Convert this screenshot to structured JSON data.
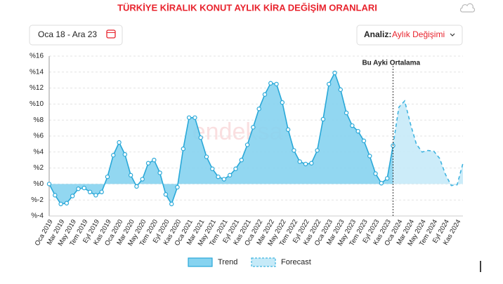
{
  "header": {
    "title": "TÜRKİYE KİRALIK KONUT AYLIK KİRA DEĞİŞİM ORANLARI",
    "date_range": "Oca 18 - Ara 23",
    "analysis_label": "Analiz:",
    "analysis_value": "Aylık Değişimi",
    "watermark": "endeksa"
  },
  "chart_data": {
    "type": "area",
    "annotation": "Bu Ayki Ortalama",
    "categories": [
      "Oca 2019",
      null,
      "Mar 2019",
      null,
      "May 2019",
      null,
      "Tem 2019",
      null,
      "Eyl 2019",
      null,
      "Kas 2019",
      null,
      "Oca 2020",
      null,
      "Mar 2020",
      null,
      "May 2020",
      null,
      "Tem 2020",
      null,
      "Eyl 2020",
      null,
      "Kas 2020",
      null,
      "Oca 2021",
      null,
      "Mar 2021",
      null,
      "May 2021",
      null,
      "Tem 2021",
      null,
      "Eyl 2021",
      null,
      "Kas 2021",
      null,
      "Oca 2022",
      null,
      "Mar 2022",
      null,
      "May 2022",
      null,
      "Tem 2022",
      null,
      "Eyl 2022",
      null,
      "Kas 2022",
      null,
      "Oca 2023",
      null,
      "Mar 2023",
      null,
      "May 2023",
      null,
      "Tem 2023",
      null,
      "Eyl 2023",
      null,
      "Kas 2023",
      null,
      "Oca 2024",
      null,
      "Mar 2024",
      null,
      "May 2024",
      null,
      "Tem 2024",
      null,
      "Eyl 2024",
      null,
      "Kas 2024",
      null
    ],
    "series": [
      {
        "name": "Trend",
        "color": "#29a8d8",
        "fill": "#86d3f0",
        "dashed": false,
        "markers": true,
        "values": [
          0,
          -1.4,
          -2.5,
          -2.4,
          -1.5,
          -0.6,
          -0.5,
          -1.0,
          -1.4,
          -1.0,
          0.9,
          3.6,
          5.2,
          3.7,
          1.1,
          -0.3,
          0.6,
          2.6,
          3.0,
          1.4,
          -1.3,
          -2.5,
          -0.4,
          4.4,
          8.3,
          8.3,
          5.8,
          3.4,
          1.9,
          0.9,
          0.6,
          1.1,
          1.9,
          3.0,
          4.9,
          7.1,
          9.4,
          11.2,
          12.6,
          12.5,
          10.2,
          6.8,
          4.2,
          2.8,
          2.5,
          2.6,
          4.2,
          8.1,
          12.5,
          13.9,
          11.8,
          8.9,
          7.3,
          6.6,
          5.4,
          3.5,
          1.3,
          0.1,
          0.7,
          4.8,
          null,
          null,
          null,
          null,
          null,
          null,
          null,
          null,
          null,
          null,
          null,
          null
        ]
      },
      {
        "name": "Forecast",
        "color": "#3fb3df",
        "fill": "#c6eaf8",
        "dashed": true,
        "markers": false,
        "values": [
          null,
          null,
          null,
          null,
          null,
          null,
          null,
          null,
          null,
          null,
          null,
          null,
          null,
          null,
          null,
          null,
          null,
          null,
          null,
          null,
          null,
          null,
          null,
          null,
          null,
          null,
          null,
          null,
          null,
          null,
          null,
          null,
          null,
          null,
          null,
          null,
          null,
          null,
          null,
          null,
          null,
          null,
          null,
          null,
          null,
          null,
          null,
          null,
          null,
          null,
          null,
          null,
          null,
          null,
          null,
          null,
          null,
          null,
          null,
          4.8,
          9.6,
          10.4,
          7.5,
          5.0,
          4.0,
          4.2,
          4.1,
          3.2,
          1.2,
          -0.2,
          -0.1,
          2.6
        ]
      }
    ],
    "ylim": [
      -4,
      16
    ],
    "yticks": [
      {
        "value": 16,
        "label": "%16"
      },
      {
        "value": 14,
        "label": "%14"
      },
      {
        "value": 12,
        "label": "%12"
      },
      {
        "value": 10,
        "label": "%10"
      },
      {
        "value": 8,
        "label": "%8"
      },
      {
        "value": 6,
        "label": "%6"
      },
      {
        "value": 4,
        "label": "%4"
      },
      {
        "value": 2,
        "label": "%2"
      },
      {
        "value": 0,
        "label": "%0"
      },
      {
        "value": -2,
        "label": "%-2"
      },
      {
        "value": -4,
        "label": "%-4"
      }
    ],
    "grid": true,
    "legend": "bottom"
  }
}
